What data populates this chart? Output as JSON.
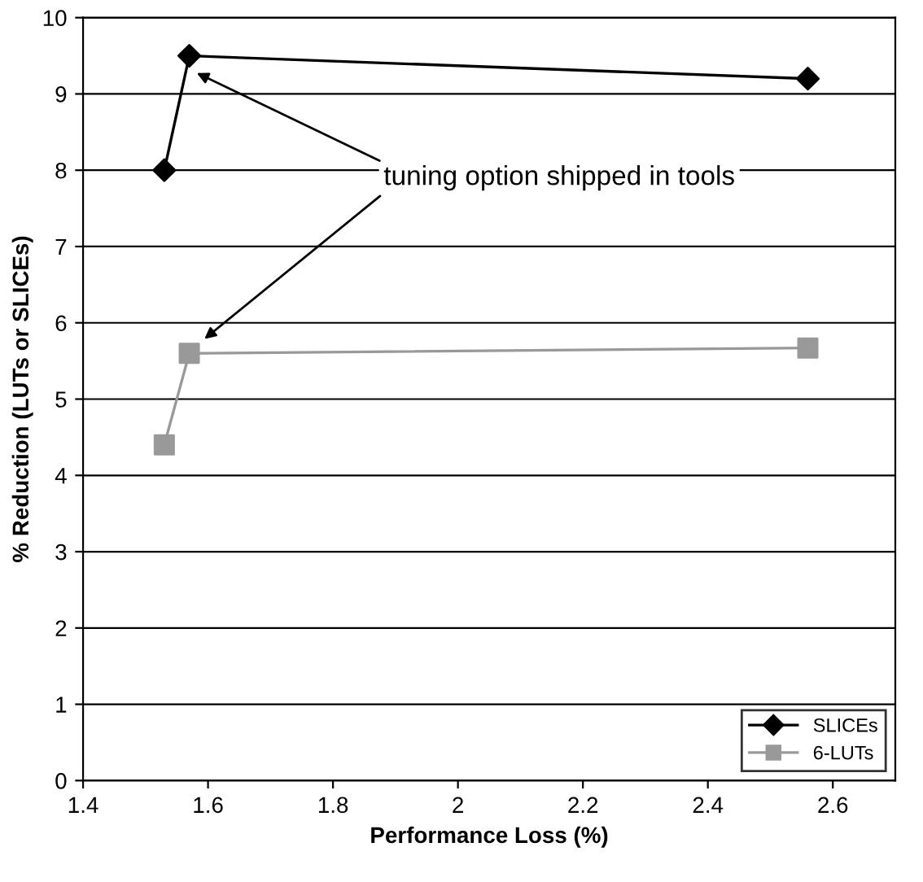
{
  "chart_data": {
    "type": "line",
    "xlabel": "Performance Loss (%)",
    "ylabel": "% Reduction (LUTs or SLICEs)",
    "xlim": [
      1.4,
      2.7
    ],
    "xticks": [
      1.4,
      1.6,
      1.8,
      {
        "value": 2.0,
        "label": "2"
      },
      2.2,
      2.4,
      2.6
    ],
    "ylim": [
      0,
      10
    ],
    "yticks": [
      0,
      1,
      2,
      3,
      4,
      5,
      6,
      7,
      8,
      9,
      10
    ],
    "grid": "y",
    "legend": "bottom right",
    "series": [
      {
        "name": "SLICEs",
        "color": "#000000",
        "marker": "diamond",
        "x": [
          1.53,
          1.57,
          2.56
        ],
        "values": [
          8.0,
          9.5,
          9.2
        ]
      },
      {
        "name": "6-LUTs",
        "color": "#999999",
        "marker": "square",
        "x": [
          1.53,
          1.57,
          2.56
        ],
        "values": [
          4.4,
          5.6,
          5.67
        ]
      }
    ],
    "annotations": [
      "tuning option shipped in tools"
    ]
  }
}
